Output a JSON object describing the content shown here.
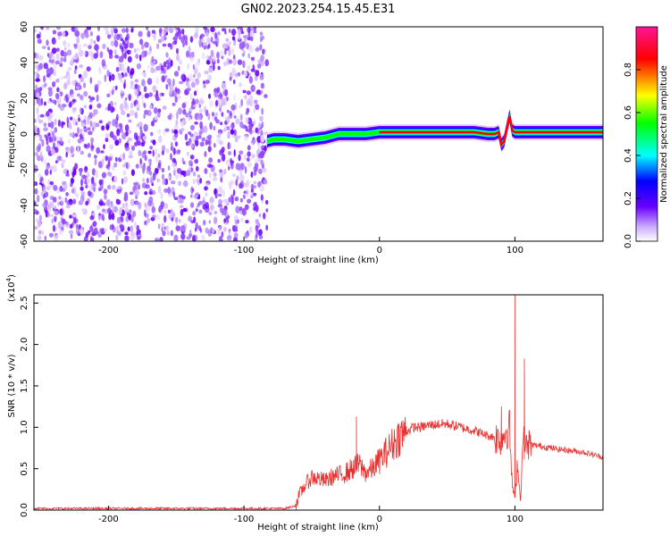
{
  "figure_title": "GN02.2023.254.15.45.E31",
  "chart_data": [
    {
      "type": "heatmap",
      "title": "GN02.2023.254.15.45.E31",
      "xlabel": "Height of straight line (km)",
      "ylabel": "Frequency (Hz)",
      "xlim": [
        -255,
        165
      ],
      "ylim": [
        -60,
        60
      ],
      "x_ticks": [
        -200,
        -100,
        0,
        100
      ],
      "y_ticks": [
        -60,
        -40,
        -20,
        0,
        20,
        40,
        60
      ],
      "grid": false,
      "noise_region_x": [
        -255,
        -83
      ],
      "signal_track": {
        "x": [
          -83,
          -78,
          -70,
          -60,
          -50,
          -40,
          -30,
          -20,
          -10,
          0,
          10,
          20,
          30,
          40,
          50,
          60,
          70,
          80,
          85,
          88,
          90,
          92,
          94,
          96,
          98,
          100,
          110,
          120,
          130,
          140,
          150,
          160,
          165
        ],
        "y": [
          -4,
          -3,
          -3,
          -4,
          -3,
          -2,
          0,
          0,
          0,
          1,
          1,
          1,
          1,
          1,
          1,
          1,
          1,
          0,
          0,
          1,
          -6,
          -4,
          3,
          10,
          2,
          1,
          1,
          1,
          1,
          1,
          1,
          1,
          1
        ]
      },
      "colorbar": {
        "label": "Normalized spectral amplitude",
        "range": [
          0.0,
          1.0
        ],
        "ticks": [
          "0.0",
          "0.2",
          "0.4",
          "0.6",
          "0.8"
        ],
        "colors": [
          "#ffffff",
          "#6a00ff",
          "#0000ff",
          "#00ffff",
          "#00ff00",
          "#ffff00",
          "#ff0000",
          "#ff1493"
        ]
      }
    },
    {
      "type": "line",
      "xlabel": "Height of straight line (km)",
      "ylabel": "SNR (10 * v/v)",
      "y_multiplier": "(x10",
      "y_multiplier_exp": "4",
      "y_multiplier_close": ")",
      "xlim": [
        -255,
        165
      ],
      "ylim": [
        0,
        2.6
      ],
      "x_ticks": [
        -200,
        -100,
        0,
        100
      ],
      "y_ticks": [
        "0.0",
        "0.5",
        "1.0",
        "1.5",
        "2.0",
        "2.5"
      ],
      "grid": false,
      "series": [
        {
          "color": "#e8302f",
          "x": [
            -255,
            -200,
            -150,
            -100,
            -70,
            -62,
            -60,
            -55,
            -50,
            -45,
            -40,
            -35,
            -30,
            -25,
            -20,
            -15,
            -10,
            -5,
            0,
            5,
            10,
            15,
            20,
            25,
            30,
            35,
            40,
            45,
            50,
            55,
            60,
            65,
            70,
            75,
            80,
            85,
            90,
            93,
            96,
            98,
            100,
            102,
            104,
            106,
            108,
            110,
            115,
            120,
            130,
            140,
            150,
            160,
            165
          ],
          "y": [
            0.02,
            0.02,
            0.02,
            0.02,
            0.02,
            0.05,
            0.15,
            0.3,
            0.4,
            0.38,
            0.35,
            0.4,
            0.42,
            0.45,
            0.5,
            0.55,
            0.45,
            0.5,
            0.6,
            0.7,
            0.8,
            0.9,
            0.95,
            1.0,
            1.0,
            1.02,
            1.03,
            1.04,
            1.04,
            1.02,
            1.0,
            0.98,
            0.96,
            0.93,
            0.9,
            0.88,
            0.86,
            0.95,
            1.0,
            0.3,
            0.15,
            0.6,
            0.1,
            0.85,
            0.75,
            0.8,
            0.78,
            0.77,
            0.74,
            0.72,
            0.7,
            0.66,
            0.64
          ]
        }
      ],
      "peaks": [
        {
          "x": 100,
          "y": 2.6
        },
        {
          "x": 107,
          "y": 1.83
        },
        {
          "x": 90,
          "y": 1.25
        },
        {
          "x": -17,
          "y": 1.13
        }
      ]
    }
  ]
}
